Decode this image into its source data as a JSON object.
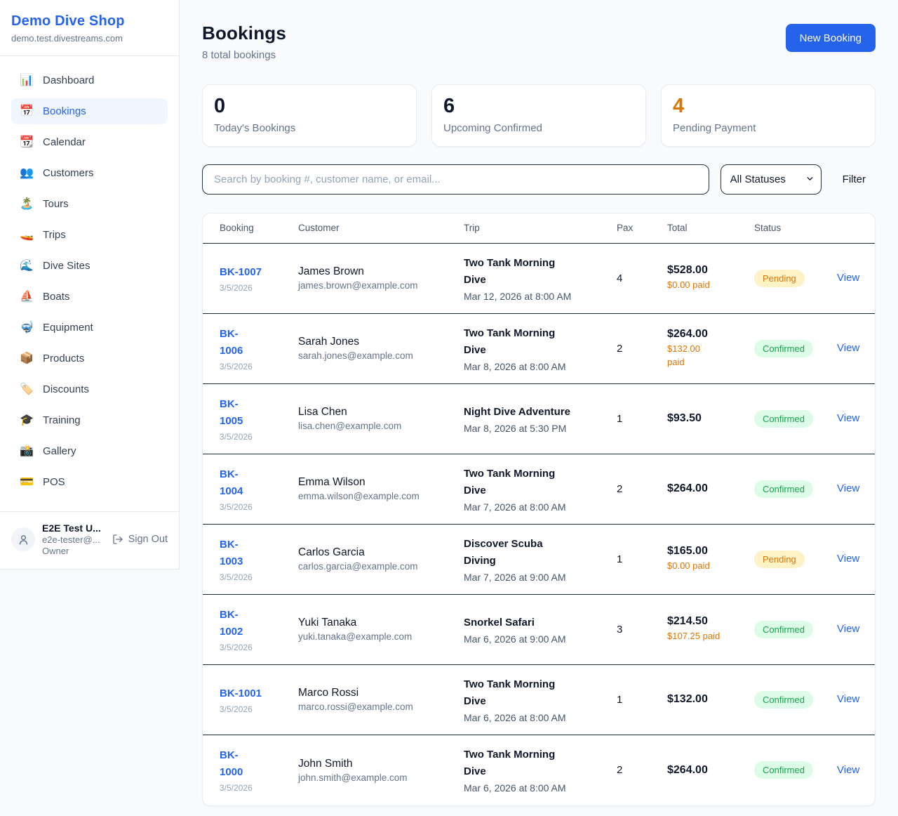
{
  "colors": {
    "accent": "#2563eb",
    "pending_text": "#d97706",
    "pending_bg": "#fef3c7",
    "confirmed_text": "#16a34a",
    "confirmed_bg": "#dcfce7",
    "warning_value": "#d97706"
  },
  "sidebar": {
    "brand": "Demo Dive Shop",
    "domain": "demo.test.divestreams.com",
    "items": [
      {
        "label": "Dashboard",
        "icon": "📊",
        "icon_name": "bar-chart-icon",
        "active": false
      },
      {
        "label": "Bookings",
        "icon": "📅",
        "icon_name": "calendar-icon",
        "active": true
      },
      {
        "label": "Calendar",
        "icon": "📆",
        "icon_name": "tearoff-calendar-icon",
        "active": false
      },
      {
        "label": "Customers",
        "icon": "👥",
        "icon_name": "people-icon",
        "active": false
      },
      {
        "label": "Tours",
        "icon": "🏝️",
        "icon_name": "island-icon",
        "active": false
      },
      {
        "label": "Trips",
        "icon": "🚤",
        "icon_name": "speedboat-icon",
        "active": false
      },
      {
        "label": "Dive Sites",
        "icon": "🌊",
        "icon_name": "wave-icon",
        "active": false
      },
      {
        "label": "Boats",
        "icon": "⛵",
        "icon_name": "sailboat-icon",
        "active": false
      },
      {
        "label": "Equipment",
        "icon": "🤿",
        "icon_name": "diving-mask-icon",
        "active": false
      },
      {
        "label": "Products",
        "icon": "📦",
        "icon_name": "package-icon",
        "active": false
      },
      {
        "label": "Discounts",
        "icon": "🏷️",
        "icon_name": "tag-icon",
        "active": false
      },
      {
        "label": "Training",
        "icon": "🎓",
        "icon_name": "graduation-cap-icon",
        "active": false
      },
      {
        "label": "Gallery",
        "icon": "📸",
        "icon_name": "camera-icon",
        "active": false
      },
      {
        "label": "POS",
        "icon": "💳",
        "icon_name": "credit-card-icon",
        "active": false
      }
    ],
    "user": {
      "name": "E2E Test U...",
      "email": "e2e-tester@...",
      "role": "Owner",
      "sign_out": "Sign Out"
    }
  },
  "header": {
    "title": "Bookings",
    "subtitle": "8 total bookings",
    "new_booking": "New Booking"
  },
  "stats": [
    {
      "value": "0",
      "label": "Today's Bookings",
      "value_color": "#0f172a"
    },
    {
      "value": "6",
      "label": "Upcoming Confirmed",
      "value_color": "#0f172a"
    },
    {
      "value": "4",
      "label": "Pending Payment",
      "value_color": "#d97706"
    }
  ],
  "filters": {
    "search_placeholder": "Search by booking #, customer name, or email...",
    "status_select": "All Statuses",
    "filter_label": "Filter"
  },
  "table": {
    "columns": [
      "Booking",
      "Customer",
      "Trip",
      "Pax",
      "Total",
      "Status"
    ],
    "rows": [
      {
        "id": "BK-1007",
        "id_two_lines": false,
        "date": "3/5/2026",
        "customer": "James Brown",
        "email": "james.brown@example.com",
        "trip": "Two Tank Morning Dive",
        "trip_two_lines": true,
        "trip_time": "Mar 12, 2026 at 8:00 AM",
        "pax": "4",
        "total": "$528.00",
        "paid": "$0.00 paid",
        "paid_two_lines": false,
        "status": "Pending",
        "action": "View"
      },
      {
        "id": "BK-1006",
        "id_two_lines": true,
        "date": "3/5/2026",
        "customer": "Sarah Jones",
        "email": "sarah.jones@example.com",
        "trip": "Two Tank Morning Dive",
        "trip_two_lines": true,
        "trip_time": "Mar 8, 2026 at 8:00 AM",
        "pax": "2",
        "total": "$264.00",
        "paid": "$132.00 paid",
        "paid_two_lines": true,
        "status": "Confirmed",
        "action": "View"
      },
      {
        "id": "BK-1005",
        "id_two_lines": true,
        "date": "3/5/2026",
        "customer": "Lisa Chen",
        "email": "lisa.chen@example.com",
        "trip": "Night Dive Adventure",
        "trip_two_lines": false,
        "trip_time": "Mar 8, 2026 at 5:30 PM",
        "pax": "1",
        "total": "$93.50",
        "paid": null,
        "paid_two_lines": false,
        "status": "Confirmed",
        "action": "View"
      },
      {
        "id": "BK-1004",
        "id_two_lines": true,
        "date": "3/5/2026",
        "customer": "Emma Wilson",
        "email": "emma.wilson@example.com",
        "trip": "Two Tank Morning Dive",
        "trip_two_lines": true,
        "trip_time": "Mar 7, 2026 at 8:00 AM",
        "pax": "2",
        "total": "$264.00",
        "paid": null,
        "paid_two_lines": false,
        "status": "Confirmed",
        "action": "View"
      },
      {
        "id": "BK-1003",
        "id_two_lines": true,
        "date": "3/5/2026",
        "customer": "Carlos Garcia",
        "email": "carlos.garcia@example.com",
        "trip": "Discover Scuba Diving",
        "trip_two_lines": true,
        "trip_time": "Mar 7, 2026 at 9:00 AM",
        "pax": "1",
        "total": "$165.00",
        "paid": "$0.00 paid",
        "paid_two_lines": false,
        "status": "Pending",
        "action": "View"
      },
      {
        "id": "BK-1002",
        "id_two_lines": true,
        "date": "3/5/2026",
        "customer": "Yuki Tanaka",
        "email": "yuki.tanaka@example.com",
        "trip": "Snorkel Safari",
        "trip_two_lines": false,
        "trip_time": "Mar 6, 2026 at 9:00 AM",
        "pax": "3",
        "total": "$214.50",
        "paid": "$107.25 paid",
        "paid_two_lines": false,
        "status": "Confirmed",
        "action": "View"
      },
      {
        "id": "BK-1001",
        "id_two_lines": false,
        "date": "3/5/2026",
        "customer": "Marco Rossi",
        "email": "marco.rossi@example.com",
        "trip": "Two Tank Morning Dive",
        "trip_two_lines": true,
        "trip_time": "Mar 6, 2026 at 8:00 AM",
        "pax": "1",
        "total": "$132.00",
        "paid": null,
        "paid_two_lines": false,
        "status": "Confirmed",
        "action": "View"
      },
      {
        "id": "BK-1000",
        "id_two_lines": true,
        "date": "3/5/2026",
        "customer": "John Smith",
        "email": "john.smith@example.com",
        "trip": "Two Tank Morning Dive",
        "trip_two_lines": true,
        "trip_time": "Mar 6, 2026 at 8:00 AM",
        "pax": "2",
        "total": "$264.00",
        "paid": null,
        "paid_two_lines": false,
        "status": "Confirmed",
        "action": "View"
      }
    ]
  }
}
